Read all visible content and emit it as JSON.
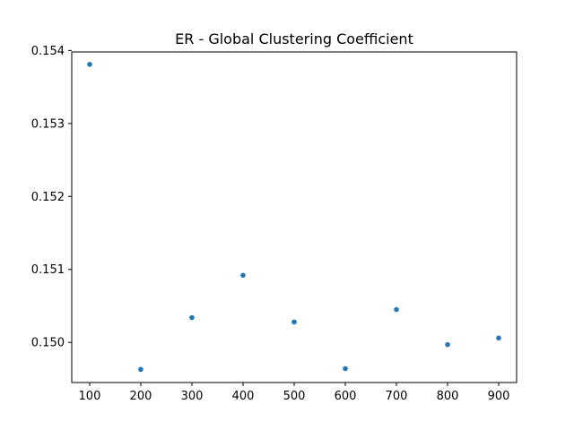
{
  "chart_data": {
    "type": "scatter",
    "title": "ER - Global Clustering Coefficient",
    "xlabel": "",
    "ylabel": "",
    "xlim": [
      65,
      935
    ],
    "ylim": [
      0.14945,
      0.15398
    ],
    "x_ticks": [
      100,
      200,
      300,
      400,
      500,
      600,
      700,
      800,
      900
    ],
    "y_ticks": [
      0.15,
      0.151,
      0.152,
      0.153,
      0.154
    ],
    "y_tick_labels": [
      "0.150",
      "0.151",
      "0.152",
      "0.153",
      "0.154"
    ],
    "grid": false,
    "series": [
      {
        "color": "#1f77b4",
        "x": [
          100,
          200,
          300,
          400,
          500,
          600,
          700,
          800,
          900
        ],
        "y": [
          0.15381,
          0.14963,
          0.15034,
          0.15092,
          0.15028,
          0.14964,
          0.15045,
          0.14997,
          0.15006
        ]
      }
    ]
  }
}
